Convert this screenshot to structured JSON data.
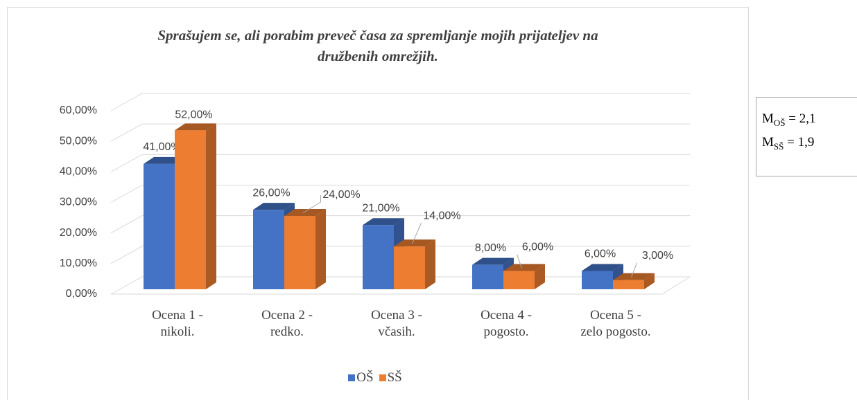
{
  "chart_data": {
    "type": "bar3d",
    "title": "Sprašujem se, ali porabim preveč časa za spremljanje mojih prijateljev na\ndružbenih omrežjih.",
    "categories": [
      "Ocena 1 -\nnikoli.",
      "Ocena 2 -\nredko.",
      "Ocena 3 -\nvčasih.",
      "Ocena 4 -\npogosto.",
      "Ocena 5 -\nzelo pogosto."
    ],
    "series": [
      {
        "name": "OŠ",
        "color": "#4472c4",
        "values": [
          41,
          26,
          21,
          8,
          6
        ],
        "value_labels": [
          "41,00%",
          "26,00%",
          "21,00%",
          "8,00%",
          "6,00%"
        ]
      },
      {
        "name": "SŠ",
        "color": "#ed7d31",
        "values": [
          52,
          24,
          14,
          6,
          3
        ],
        "value_labels": [
          "52,00%",
          "24,00%",
          "14,00%",
          "6,00%",
          "3,00%"
        ]
      }
    ],
    "ylim": [
      0,
      60
    ],
    "yticks": [
      {
        "value": 0,
        "label": "0,00%"
      },
      {
        "value": 10,
        "label": "10,00%"
      },
      {
        "value": 20,
        "label": "20,00%"
      },
      {
        "value": 30,
        "label": "30,00%"
      },
      {
        "value": 40,
        "label": "40,00%"
      },
      {
        "value": 50,
        "label": "50,00%"
      },
      {
        "value": 60,
        "label": "60,00%"
      }
    ],
    "grid": true,
    "legend": "bottom",
    "annotations": [
      {
        "symbol": "M",
        "sub": "OŠ",
        "text": "= 2,1"
      },
      {
        "symbol": "M",
        "sub": "SŠ",
        "text": "= 1,9"
      }
    ]
  }
}
